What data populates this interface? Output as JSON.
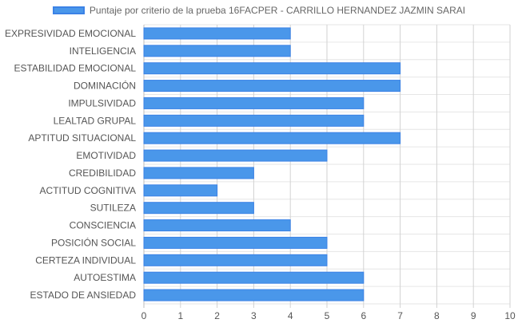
{
  "chart_data": {
    "type": "bar",
    "orientation": "horizontal",
    "legend": {
      "label": "Puntaje por criterio de la prueba 16FACPER - CARRILLO HERNANDEZ JAZMIN SARAI",
      "position": "top"
    },
    "categories": [
      "EXPRESIVIDAD EMOCIONAL",
      "INTELIGENCIA",
      "ESTABILIDAD EMOCIONAL",
      "DOMINACIÓN",
      "IMPULSIVIDAD",
      "LEALTAD GRUPAL",
      "APTITUD SITUACIONAL",
      "EMOTIVIDAD",
      "CREDIBILIDAD",
      "ACTITUD COGNITIVA",
      "SUTILEZA",
      "CONSCIENCIA",
      "POSICIÓN SOCIAL",
      "CERTEZA INDIVIDUAL",
      "AUTOESTIMA",
      "ESTADO DE ANSIEDAD"
    ],
    "series": [
      {
        "name": "Puntaje por criterio de la prueba 16FACPER - CARRILLO HERNANDEZ JAZMIN SARAI",
        "values": [
          4,
          4,
          7,
          7,
          6,
          6,
          7,
          5,
          3,
          2,
          3,
          4,
          5,
          5,
          6,
          6
        ],
        "color": "#4a97ea",
        "border_color": "#3b82e6"
      }
    ],
    "xlim": [
      0,
      10
    ],
    "x_ticks": [
      "0",
      "1",
      "2",
      "3",
      "4",
      "5",
      "6",
      "7",
      "8",
      "9",
      "10"
    ],
    "grid": true,
    "title": "",
    "xlabel": "",
    "ylabel": ""
  }
}
